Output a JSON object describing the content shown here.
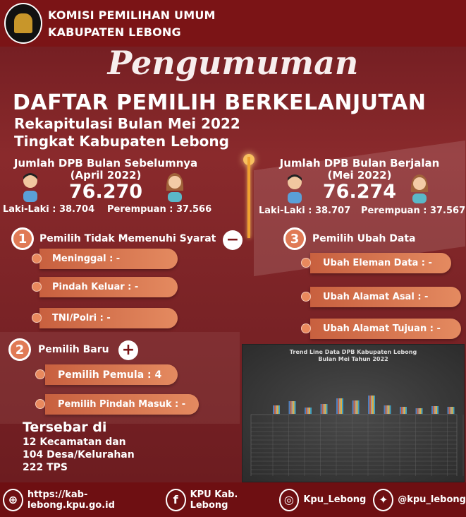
{
  "header": {
    "line1": "KOMISI PEMILIHAN UMUM",
    "line2": "KABUPATEN LEBONG",
    "logo_text": "KOMISI PEMILIHAN UMUM"
  },
  "title": {
    "script": "Pengumuman",
    "main": "DAFTAR PEMILIH BERKELANJUTAN",
    "sub1": "Rekapitulasi Bulan Mei 2022",
    "sub2": "Tingkat Kabupaten Lebong"
  },
  "previous": {
    "title": "Jumlah DPB Bulan Sebelumnya",
    "period": "(April 2022)",
    "total": "76.270",
    "male": "Laki-Laki : 38.704",
    "female": "Perempuan : 37.566"
  },
  "current": {
    "title": "Jumlah DPB Bulan Berjalan",
    "period": "(Mei 2022)",
    "total": "76.274",
    "male": "Laki-Laki : 38.707",
    "female": "Perempuan : 37.567"
  },
  "section1": {
    "number": "1",
    "title": "Pemilih Tidak Memenuhi Syarat",
    "icon": "minus-icon",
    "items": [
      "Meninggal : -",
      "Pindah Keluar : -",
      "TNI/Polri : -"
    ]
  },
  "section2": {
    "number": "2",
    "title": "Pemilih Baru",
    "icon": "plus-icon",
    "items": [
      "Pemilih Pemula : 4",
      "Pemilih Pindah Masuk : -"
    ]
  },
  "section3": {
    "number": "3",
    "title": "Pemilih Ubah Data",
    "items": [
      "Ubah Eleman Data : -",
      "Ubah Alamat Asal : -",
      "Ubah Alamat Tujuan : -"
    ]
  },
  "spread": {
    "title": "Tersebar di",
    "l1": "12 Kecamatan dan",
    "l2": "104 Desa/Kelurahan",
    "l3": "222 TPS"
  },
  "chart": {
    "title1": "Trend Line Data DPB Kabupaten Lebong",
    "title2": "Bulan Mei Tahun 2022"
  },
  "footer": {
    "website": "https://kab-lebong.kpu.go.id",
    "facebook": "KPU Kab. Lebong",
    "instagram": "Kpu_Lebong",
    "twitter": "@kpu_lebong"
  },
  "colors": {
    "maroon": "#7b1416",
    "orange": "#e07a55",
    "line": "#f0a030"
  }
}
